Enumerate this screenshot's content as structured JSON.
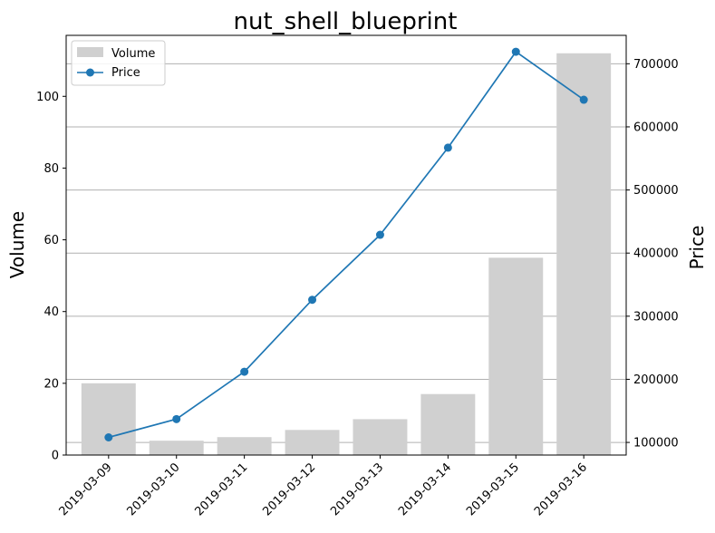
{
  "chart_data": {
    "type": "bar+line",
    "title": "nut_shell_blueprint",
    "categories": [
      "2019-03-09",
      "2019-03-10",
      "2019-03-11",
      "2019-03-12",
      "2019-03-13",
      "2019-03-14",
      "2019-03-15",
      "2019-03-16"
    ],
    "left_axis": {
      "label": "Volume",
      "ylim": [
        0,
        117
      ],
      "ticks": [
        0,
        20,
        40,
        60,
        80,
        100
      ]
    },
    "right_axis": {
      "label": "Price",
      "ylim": [
        80000,
        745000
      ],
      "ticks": [
        100000,
        200000,
        300000,
        400000,
        500000,
        600000,
        700000
      ],
      "grid": true
    },
    "series": [
      {
        "name": "Volume",
        "kind": "bar",
        "axis": "left",
        "color": "#d0d0d0",
        "values": [
          20,
          4,
          5,
          7,
          10,
          17,
          55,
          112
        ]
      },
      {
        "name": "Price",
        "kind": "line",
        "axis": "right",
        "color": "#1f77b4",
        "marker": "circle",
        "values": [
          108000,
          137000,
          212000,
          326000,
          429000,
          567000,
          719000,
          643000
        ]
      }
    ],
    "legend": {
      "placement": "top-left"
    },
    "xtick_rotation": 45
  }
}
